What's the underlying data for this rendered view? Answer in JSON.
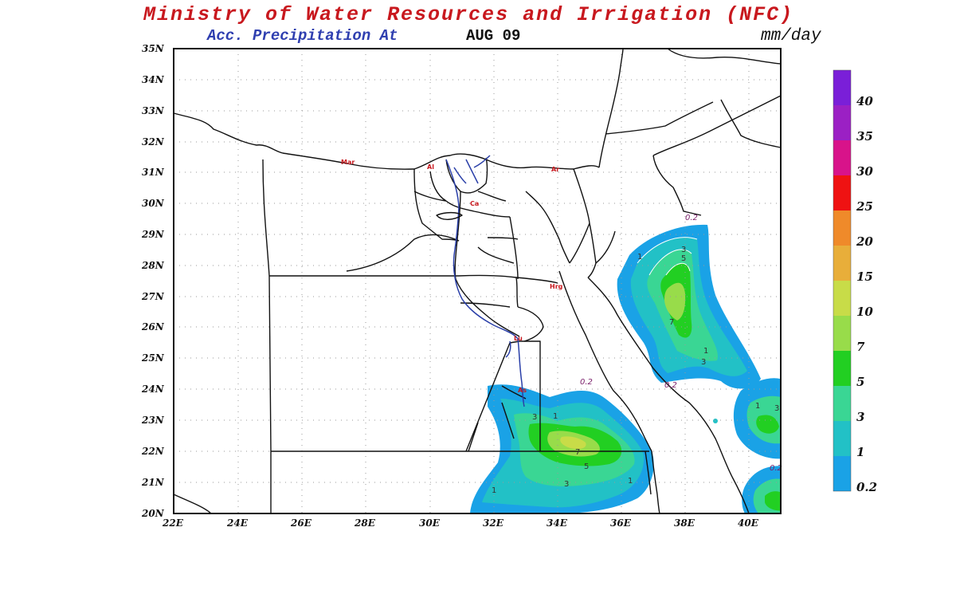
{
  "header": {
    "title": "Ministry of Water Resources and Irrigation (NFC)",
    "subtitle": "Acc. Precipitation  At",
    "date": "AUG 09",
    "unit": "mm/day"
  },
  "map": {
    "lat_labels": [
      "35N",
      "34N",
      "33N",
      "32N",
      "31N",
      "30N",
      "29N",
      "28N",
      "27N",
      "26N",
      "25N",
      "24N",
      "23N",
      "22N",
      "21N",
      "20N"
    ],
    "lon_labels": [
      "22E",
      "24E",
      "26E",
      "28E",
      "30E",
      "32E",
      "34E",
      "36E",
      "38E",
      "40E"
    ],
    "cities": [
      "Mar",
      "Al",
      "Ca",
      "Ar",
      "Hrg",
      "Lu",
      "As"
    ],
    "contour_labels": [
      "0.2",
      "1",
      "3",
      "5",
      "7",
      "3",
      "1",
      "0.2",
      "0.2",
      "1",
      "3",
      "5",
      "7",
      "1",
      "3",
      "1",
      "1",
      "3",
      "0.2"
    ]
  },
  "colorbar": {
    "labels": [
      "40",
      "35",
      "30",
      "25",
      "20",
      "15",
      "10",
      "7",
      "5",
      "3",
      "1",
      "0.2"
    ],
    "colors": [
      "#7a1fd8",
      "#9b20c4",
      "#d8138a",
      "#ef1212",
      "#ef8a2a",
      "#e8ae3a",
      "#c8dc48",
      "#98dc4a",
      "#22cf22",
      "#3ad694",
      "#22c1c6",
      "#1aa2e6"
    ]
  },
  "precip_colors": {
    "level_02": "#1aa2e6",
    "level_1": "#22c1c6",
    "level_3": "#3ad694",
    "level_5": "#22cf22",
    "level_7": "#98dc4a",
    "level_10": "#c8dc48"
  }
}
